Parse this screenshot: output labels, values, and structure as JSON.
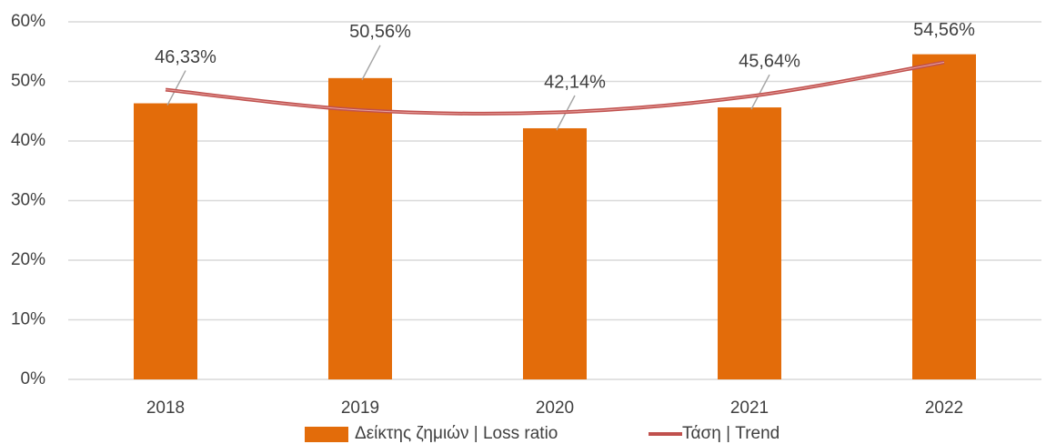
{
  "chart_data": {
    "type": "bar",
    "categories": [
      "2018",
      "2019",
      "2020",
      "2021",
      "2022"
    ],
    "series": [
      {
        "name": "Δείκτης ζημιών | Loss ratio",
        "color": "#e36c0a",
        "type": "bar",
        "values": [
          46.33,
          50.56,
          42.14,
          45.64,
          54.56
        ],
        "value_labels": [
          "46,33%",
          "50,56%",
          "42,14%",
          "45,64%",
          "54,56%"
        ]
      },
      {
        "name": "Τάση | Trend",
        "color": "#c0504d",
        "type": "line",
        "values": [
          48.6,
          45.2,
          44.8,
          47.5,
          53.2
        ]
      }
    ],
    "ylim": [
      0,
      60
    ],
    "yticks": [
      {
        "value": 0,
        "label": "0%"
      },
      {
        "value": 10,
        "label": "10%"
      },
      {
        "value": 20,
        "label": "20%"
      },
      {
        "value": 30,
        "label": "30%"
      },
      {
        "value": 40,
        "label": "40%"
      },
      {
        "value": 50,
        "label": "50%"
      },
      {
        "value": 60,
        "label": "60%"
      }
    ],
    "grid": true,
    "legend": "bottom"
  }
}
